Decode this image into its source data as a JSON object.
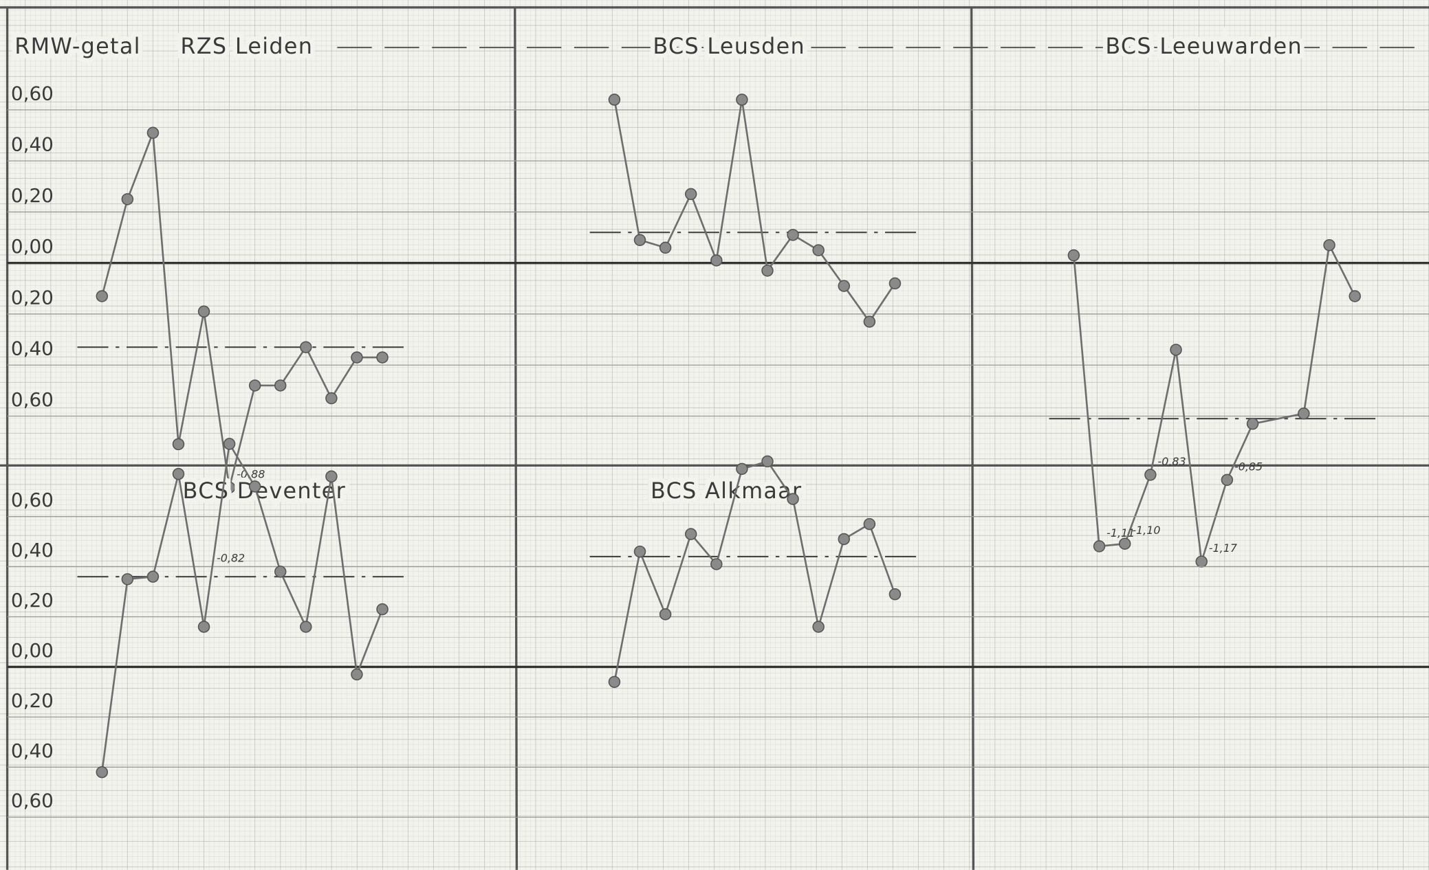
{
  "chart_data": [
    {
      "type": "line",
      "ylabel": "RMW-getal",
      "title": "RZS Leiden",
      "x": [
        1,
        2,
        3,
        4,
        5,
        6,
        7,
        8,
        9,
        10,
        11,
        12
      ],
      "values": [
        -0.13,
        0.25,
        0.51,
        -0.71,
        -0.19,
        -0.88,
        -0.48,
        -0.48,
        -0.33,
        -0.53,
        -0.37,
        -0.37
      ],
      "value_labels": [
        null,
        null,
        null,
        null,
        null,
        "-0,88",
        null,
        null,
        null,
        null,
        null,
        null
      ],
      "annotations": [
        "-0,82"
      ],
      "mean": -0.33,
      "xlim": [
        -3,
        17.2
      ],
      "ylim": [
        -0.79,
        1.03
      ],
      "yticks": [
        {
          "value": 0.6,
          "label": "0,60"
        },
        {
          "value": 0.4,
          "label": "0,40"
        },
        {
          "value": 0.2,
          "label": "0,20"
        },
        {
          "value": 0,
          "label": "0,00"
        },
        {
          "value": -0.2,
          "label": "0,20"
        },
        {
          "value": -0.4,
          "label": "0,40"
        },
        {
          "value": -0.6,
          "label": "0,60"
        }
      ]
    },
    {
      "type": "line",
      "title": "BCS Leusden",
      "x": [
        1,
        2,
        3,
        4,
        5,
        6,
        7,
        8,
        9,
        10,
        11,
        12
      ],
      "values": [
        0.64,
        0.09,
        0.06,
        0.27,
        0.01,
        0.64,
        -0.03,
        0.11,
        0.05,
        -0.09,
        -0.23,
        -0.08
      ],
      "mean": 0.12,
      "xlim": [
        -2.9,
        15
      ],
      "ylim": [
        -0.79,
        1.03
      ]
    },
    {
      "type": "line",
      "title": "BCS Leeuwarden",
      "x": [
        1,
        2,
        3,
        4,
        5,
        6,
        7,
        8,
        10,
        11,
        12
      ],
      "values": [
        0.03,
        -1.11,
        -1.1,
        -0.83,
        -0.34,
        -1.17,
        -0.85,
        -0.63,
        -0.59,
        0.07,
        -0.13
      ],
      "value_labels": [
        null,
        "-1,11",
        "-1,10",
        "-0,83",
        null,
        "-1,17",
        "-0,85",
        null,
        null,
        null,
        null
      ],
      "mean": -0.61,
      "xlim": [
        -3,
        14.9
      ],
      "ylim": [
        -0.79,
        1.03
      ]
    },
    {
      "type": "line",
      "title": "BCS Deventer",
      "x": [
        1,
        2,
        3,
        4,
        5,
        6,
        7,
        8,
        9,
        10,
        11,
        12
      ],
      "values": [
        -0.42,
        0.35,
        0.36,
        0.77,
        0.16,
        0.89,
        0.72,
        0.38,
        0.16,
        0.76,
        -0.03,
        0.23
      ],
      "mean": 0.36,
      "xlim": [
        -3,
        17.2
      ],
      "ylim": [
        -0.81,
        0.8
      ],
      "yticks": [
        {
          "value": 0.6,
          "label": "0,60"
        },
        {
          "value": 0.4,
          "label": "0,40"
        },
        {
          "value": 0.2,
          "label": "0,20"
        },
        {
          "value": 0,
          "label": "0,00"
        },
        {
          "value": -0.2,
          "label": "0,20"
        },
        {
          "value": -0.4,
          "label": "0,40"
        },
        {
          "value": -0.6,
          "label": "0,60"
        }
      ]
    },
    {
      "type": "line",
      "title": "BCS Alkmaar",
      "x": [
        1,
        2,
        3,
        4,
        5,
        6,
        7,
        8,
        9,
        10,
        11,
        12
      ],
      "values": [
        -0.06,
        0.46,
        0.21,
        0.53,
        0.41,
        0.79,
        0.82,
        0.67,
        0.16,
        0.51,
        0.57,
        0.29
      ],
      "mean": 0.44,
      "xlim": [
        -2.9,
        15
      ],
      "ylim": [
        -0.81,
        0.8
      ]
    }
  ]
}
